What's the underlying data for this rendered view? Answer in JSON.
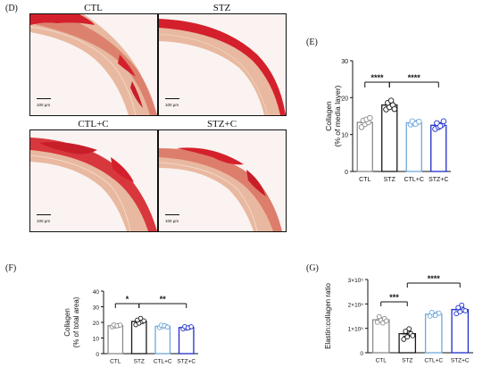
{
  "figure": {
    "label_D": "(D)",
    "label_E": "(E)",
    "label_F": "(F)",
    "label_G": "(G)"
  },
  "micrographs": [
    {
      "title": "CTL",
      "scale": "100 µm"
    },
    {
      "title": "STZ",
      "scale": "100 µm"
    },
    {
      "title": "CTL+C",
      "scale": "100 µm"
    },
    {
      "title": "STZ+C",
      "scale": "100 µm"
    }
  ],
  "colors": {
    "ctl": "#8c8c8c",
    "stz": "#1a1a1a",
    "ctlc": "#6fa8dc",
    "stzc": "#1f2ecc",
    "tissue_red": "#d4202c",
    "tissue_pale": "#e8b9a0"
  },
  "chart_data": [
    {
      "id": "E",
      "type": "bar",
      "categories": [
        "CTL",
        "STZ",
        "CTL+C",
        "STZ+C"
      ],
      "values": [
        13.3,
        18.0,
        13.2,
        12.5
      ],
      "errors": [
        0.6,
        0.8,
        0.4,
        0.7
      ],
      "points": [
        [
          12.0,
          12.8,
          13.3,
          13.8,
          14.1,
          14.5
        ],
        [
          16.8,
          17.4,
          18.0,
          18.6,
          19.2,
          16.9
        ],
        [
          12.7,
          13.0,
          13.3,
          13.6,
          12.9,
          13.5
        ],
        [
          11.5,
          12.0,
          12.6,
          13.1,
          12.3,
          13.6
        ]
      ],
      "ylabel_line1": "Collagen",
      "ylabel_line2": "(% of media layer)",
      "ylim": [
        0,
        30
      ],
      "yticks": [
        "0",
        "10",
        "20",
        "30"
      ],
      "significance": [
        {
          "from": 0,
          "to": 1,
          "label": "****"
        },
        {
          "from": 1,
          "to": 3,
          "label": "****"
        }
      ],
      "grid": false
    },
    {
      "id": "F",
      "type": "bar",
      "categories": [
        "CTL",
        "STZ",
        "CTL+C",
        "STZ+C"
      ],
      "values": [
        17.9,
        20.6,
        17.5,
        16.7
      ],
      "errors": [
        0.5,
        1.1,
        0.6,
        0.5
      ],
      "points": [
        [
          17.2,
          17.6,
          18.0,
          18.4,
          17.8,
          18.3
        ],
        [
          18.5,
          19.5,
          20.5,
          21.5,
          22.6,
          21.0
        ],
        [
          16.6,
          17.2,
          17.6,
          18.2,
          17.9,
          17.0
        ],
        [
          15.8,
          16.3,
          16.8,
          17.3,
          16.5,
          17.2
        ]
      ],
      "ylabel_line1": "Collagen",
      "ylabel_line2": "(% of total area)",
      "ylim": [
        0,
        40
      ],
      "yticks": [
        "0",
        "10",
        "20",
        "30",
        "40"
      ],
      "significance": [
        {
          "from": 0,
          "to": 1,
          "label": "*"
        },
        {
          "from": 1,
          "to": 3,
          "label": "**"
        }
      ],
      "grid": false
    },
    {
      "id": "G",
      "type": "bar",
      "categories": [
        "CTL",
        "STZ",
        "CTL+C",
        "STZ+C"
      ],
      "values": [
        135000,
        78000,
        158000,
        177000
      ],
      "errors": [
        8000,
        10000,
        5000,
        10000
      ],
      "points": [
        [
          125000,
          133000,
          140000,
          148000,
          122000,
          130000
        ],
        [
          55000,
          65000,
          78000,
          88000,
          98000,
          70000
        ],
        [
          150000,
          155000,
          160000,
          165000,
          153000,
          162000
        ],
        [
          160000,
          168000,
          175000,
          185000,
          195000,
          172000
        ]
      ],
      "ylabel_line1": "Elastin:collagen ratio",
      "ylim": [
        0,
        300000
      ],
      "yticks": [
        "0",
        "1×10⁵",
        "2×10⁵",
        "3×10⁵"
      ],
      "significance": [
        {
          "from": 0,
          "to": 1,
          "label": "***"
        },
        {
          "from": 1,
          "to": 3,
          "label": "****"
        }
      ],
      "grid": false
    }
  ]
}
